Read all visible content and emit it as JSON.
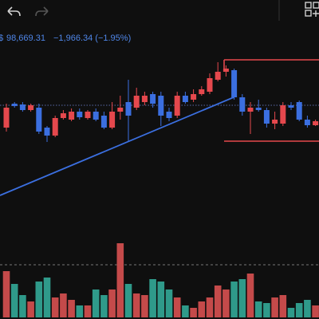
{
  "header": {
    "price": "98,669.31",
    "change": "−1,966.34 (−1.95%)"
  },
  "chart_data": {
    "type": "candlestick",
    "up_color": "#e5484d",
    "down_color": "#3b6fe0",
    "volume_up_color": "#c44a4a",
    "volume_down_color": "#2f9a8a",
    "ylim": [
      96100,
      100100
    ],
    "volume_lim": [
      0,
      100
    ],
    "open": [
      98100,
      98700,
      98680,
      98540,
      98600,
      98100,
      97900,
      98340,
      98300,
      98500,
      98340,
      98500,
      98400,
      98100,
      98500,
      98740,
      98600,
      98740,
      98940,
      98900,
      98500,
      98400,
      98900,
      98800,
      98940,
      99000,
      99300,
      99500,
      99540,
      98860,
      98500,
      98600,
      98540,
      98200,
      98200,
      98660,
      98740,
      98300,
      98160
    ],
    "high": [
      98700,
      98740,
      98740,
      98700,
      98700,
      98140,
      98400,
      98540,
      98580,
      98580,
      98540,
      98580,
      98500,
      98740,
      98900,
      99300,
      99100,
      99000,
      99000,
      99000,
      98600,
      99000,
      99000,
      99060,
      99140,
      99460,
      99740,
      99660,
      99580,
      98940,
      98740,
      98800,
      98600,
      98500,
      98740,
      98740,
      98780,
      98400,
      98300
    ],
    "low": [
      98000,
      98600,
      98500,
      98500,
      97940,
      97740,
      97860,
      98300,
      98260,
      98300,
      98300,
      98260,
      98060,
      98060,
      98300,
      97740,
      98540,
      98660,
      98600,
      98140,
      98260,
      98340,
      98700,
      98740,
      98900,
      98940,
      99260,
      99380,
      98800,
      98400,
      97940,
      98500,
      98100,
      98060,
      98140,
      98540,
      98260,
      98100,
      98140
    ],
    "close": [
      98600,
      98640,
      98540,
      98660,
      98000,
      97900,
      98340,
      98460,
      98500,
      98360,
      98500,
      98300,
      98100,
      98500,
      98600,
      98400,
      98900,
      98900,
      98700,
      98400,
      98340,
      98900,
      98740,
      98940,
      99060,
      99340,
      99500,
      99580,
      98860,
      98500,
      98600,
      98540,
      98200,
      98300,
      98660,
      98600,
      98300,
      98160,
      98260
    ],
    "volume": [
      58,
      42,
      28,
      20,
      45,
      50,
      25,
      30,
      22,
      15,
      15,
      35,
      28,
      35,
      93,
      42,
      30,
      28,
      48,
      45,
      35,
      25,
      15,
      12,
      20,
      25,
      40,
      35,
      45,
      48,
      55,
      20,
      18,
      25,
      28,
      12,
      18,
      22,
      15
    ]
  }
}
